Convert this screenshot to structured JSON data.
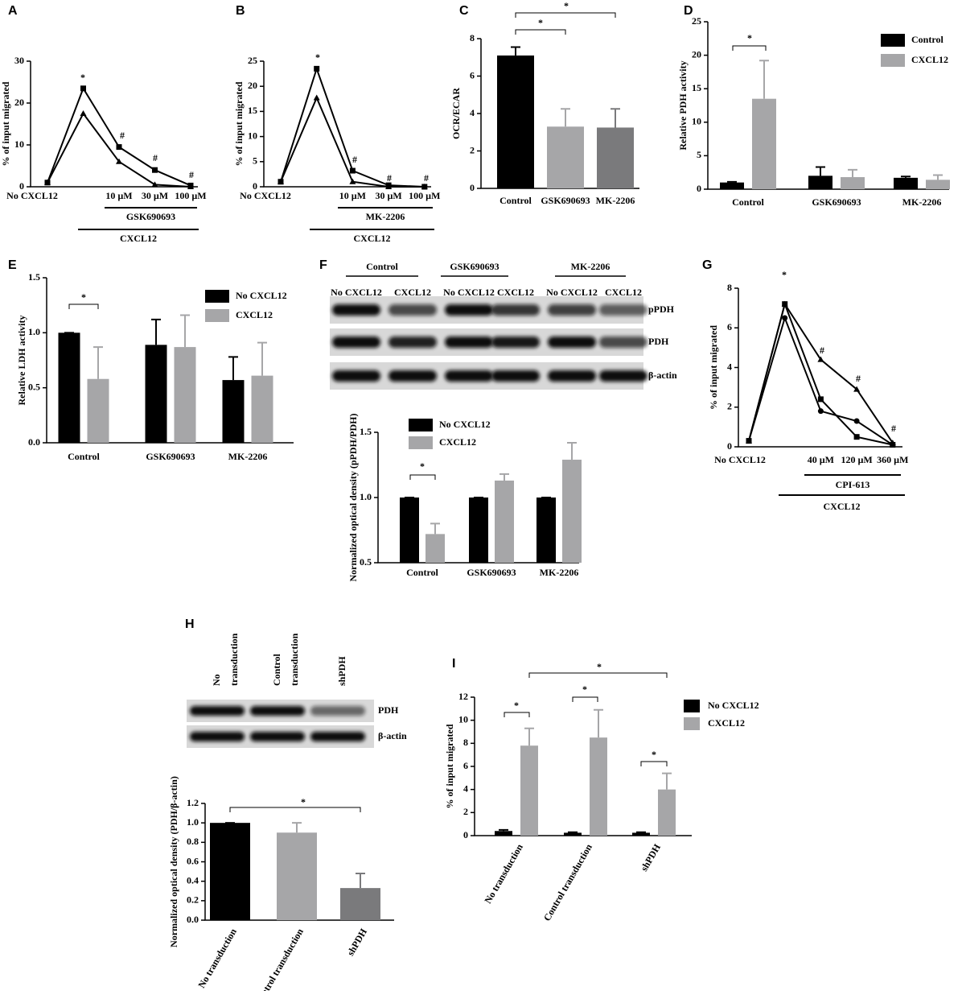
{
  "chart_data": [
    {
      "panel": "A",
      "type": "line",
      "ylabel": "% of input migrated",
      "categories": [
        "No CXCL12",
        null,
        "10 µM",
        "30 µM",
        "100 µM"
      ],
      "series": [
        {
          "color": "#000000",
          "marker": "square",
          "values": [
            1,
            23.5,
            9.5,
            4,
            0.3
          ]
        },
        {
          "color": "#000000",
          "marker": "triangle",
          "values": [
            1,
            17.5,
            6,
            0.5,
            0
          ]
        }
      ],
      "ylim": [
        0,
        30
      ],
      "yticks": [
        0,
        10,
        20,
        30
      ],
      "groups": [
        "GSK690693",
        "CXCL12"
      ],
      "annotations": [
        "*",
        "#",
        "#",
        "#"
      ]
    },
    {
      "panel": "B",
      "type": "line",
      "ylabel": "% of input migrated",
      "categories": [
        "No CXCL12",
        null,
        "10 µM",
        "30 µM",
        "100 µM"
      ],
      "series": [
        {
          "color": "#000000",
          "marker": "square",
          "values": [
            1,
            23.5,
            3.2,
            0.3,
            0
          ]
        },
        {
          "color": "#000000",
          "marker": "triangle",
          "values": [
            1,
            17.7,
            1,
            0,
            0
          ]
        }
      ],
      "ylim": [
        0,
        25
      ],
      "yticks": [
        0,
        5,
        10,
        15,
        20,
        25
      ],
      "groups": [
        "MK-2206",
        "CXCL12"
      ],
      "annotations": [
        "*",
        "#",
        "#",
        "#"
      ]
    },
    {
      "panel": "C",
      "type": "bar",
      "ylabel": "OCR/ECAR",
      "categories": [
        "Control",
        "GSK690693",
        "MK-2206"
      ],
      "values": [
        7.1,
        3.3,
        3.25
      ],
      "errors": [
        0.45,
        0.95,
        1.0
      ],
      "colors": [
        "#000000",
        "#a6a6a8",
        "#7a7a7c"
      ],
      "ylim": [
        0,
        8
      ],
      "yticks": [
        0,
        2,
        4,
        6,
        8
      ],
      "annotations": [
        "*",
        "*"
      ]
    },
    {
      "panel": "D",
      "type": "bar",
      "ylabel": "Relative PDH activity",
      "categories": [
        "Control",
        "GSK690693",
        "MK-2206"
      ],
      "series": [
        {
          "name": "Control",
          "color": "#000000",
          "values": [
            1,
            2,
            1.7
          ],
          "errors": [
            0.1,
            1.3,
            0.2
          ]
        },
        {
          "name": "CXCL12",
          "color": "#a6a6a8",
          "values": [
            13.5,
            1.8,
            1.4
          ],
          "errors": [
            5.7,
            1.1,
            0.7
          ]
        }
      ],
      "ylim": [
        0,
        25
      ],
      "yticks": [
        0,
        5,
        10,
        15,
        20,
        25
      ],
      "legend": "right",
      "annotations": [
        "*"
      ]
    },
    {
      "panel": "E",
      "type": "bar",
      "ylabel": "Relative LDH activity",
      "categories": [
        "Control",
        "GSK690693",
        "MK-2206"
      ],
      "series": [
        {
          "name": "No CXCL12",
          "color": "#000000",
          "values": [
            1.0,
            0.89,
            0.57
          ],
          "errors": [
            0,
            0.23,
            0.21
          ]
        },
        {
          "name": "CXCL12",
          "color": "#a6a6a8",
          "values": [
            0.58,
            0.87,
            0.61
          ],
          "errors": [
            0.29,
            0.29,
            0.3
          ]
        }
      ],
      "ylim": [
        0,
        1.5
      ],
      "yticks": [
        {
          "value": 0,
          "label": "0.0"
        },
        0.5,
        {
          "value": 1,
          "label": "1.0"
        },
        1.5
      ],
      "legend": "right",
      "annotations": [
        "*"
      ]
    },
    {
      "panel": "F",
      "type": "bar",
      "ylabel": "Normalized optical density (pPDH/PDH)",
      "categories": [
        "Control",
        "GSK690693",
        "MK-2206"
      ],
      "series": [
        {
          "name": "No CXCL12",
          "color": "#000000",
          "values": [
            1,
            1,
            1
          ],
          "errors": [
            0,
            0,
            0
          ]
        },
        {
          "name": "CXCL12",
          "color": "#a6a6a8",
          "values": [
            0.72,
            1.13,
            1.29
          ],
          "errors": [
            0.08,
            0.05,
            0.13
          ]
        }
      ],
      "ylim": [
        0.5,
        1.5
      ],
      "yticks": [
        0.5,
        {
          "value": 1,
          "label": "1.0"
        },
        1.5
      ],
      "legend": "upper left",
      "annotations": [
        "*"
      ]
    },
    {
      "panel": "G",
      "type": "line",
      "ylabel": "% of input migrated",
      "categories": [
        "No CXCL12",
        null,
        "40 µM",
        "120 µM",
        "360 µM"
      ],
      "series": [
        {
          "color": "#000000",
          "marker": "triangle",
          "values": [
            0.3,
            7.2,
            4.4,
            2.9,
            0.2
          ]
        },
        {
          "color": "#000000",
          "marker": "square",
          "values": [
            0.3,
            7.2,
            2.4,
            0.5,
            0.1
          ]
        },
        {
          "color": "#000000",
          "marker": "circle",
          "values": [
            0.3,
            6.5,
            1.8,
            1.3,
            0.1
          ]
        }
      ],
      "ylim": [
        0,
        8
      ],
      "yticks": [
        0,
        2,
        4,
        6,
        8
      ],
      "groups": [
        "CPI-613",
        "CXCL12"
      ],
      "annotations": [
        "*",
        "#",
        "#",
        "#"
      ]
    },
    {
      "panel": "H",
      "type": "bar",
      "ylabel": "Normalized optical density (PDH/β-actin)",
      "categories": [
        "No transduction",
        "Control transduction",
        "shPDH"
      ],
      "values": [
        1.0,
        0.9,
        0.33
      ],
      "errors": [
        0,
        0.1,
        0.15
      ],
      "colors": [
        "#000000",
        "#a6a6a8",
        "#7a7a7c"
      ],
      "ylim": [
        0,
        1.2
      ],
      "yticks": [
        {
          "value": 0,
          "label": "0.0"
        },
        0.2,
        0.4,
        0.6,
        0.8,
        {
          "value": 1,
          "label": "1.0"
        },
        1.2
      ],
      "annotations": [
        "*"
      ]
    },
    {
      "panel": "I",
      "type": "bar",
      "ylabel": "% of input migrated",
      "categories": [
        "No transduction",
        "Control transduction",
        "shPDH"
      ],
      "series": [
        {
          "name": "No CXCL12",
          "color": "#000000",
          "values": [
            0.4,
            0.25,
            0.25
          ],
          "errors": [
            0.1,
            0.05,
            0.05
          ]
        },
        {
          "name": "CXCL12",
          "color": "#a6a6a8",
          "values": [
            7.8,
            8.5,
            4.0
          ],
          "errors": [
            1.5,
            2.4,
            1.4
          ]
        }
      ],
      "ylim": [
        0,
        12
      ],
      "yticks": [
        0,
        2,
        4,
        6,
        8,
        10,
        12
      ],
      "legend": "right",
      "annotations": [
        "*",
        "*",
        "*",
        "*"
      ]
    }
  ],
  "blots": [
    {
      "groups": [
        "Control",
        "GSK690693",
        "MK-2206"
      ],
      "lanes": [
        [
          "No CXCL12"
        ],
        [
          "CXCL12"
        ],
        [
          "No CXCL12"
        ],
        [
          "CXCL12"
        ],
        [
          "No CXCL12"
        ],
        [
          "CXCL12"
        ]
      ],
      "rows": [
        "pPDH",
        "PDH",
        "β-actin"
      ]
    },
    {
      "lanes": [
        [
          "No",
          "transduction"
        ],
        [
          "Control",
          "transduction"
        ],
        [
          "shPDH"
        ]
      ],
      "rows": [
        "PDH",
        "β-actin"
      ]
    }
  ]
}
